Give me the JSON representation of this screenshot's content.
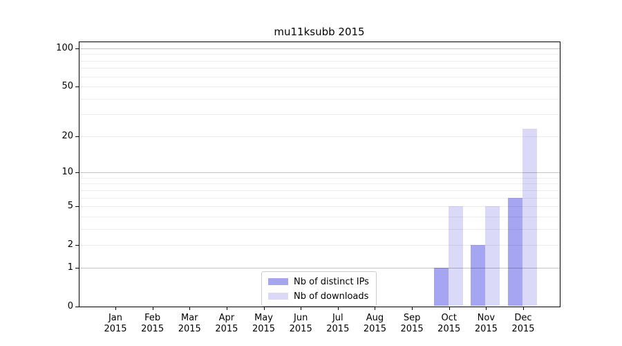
{
  "chart_data": {
    "type": "bar",
    "title": "mu11ksubb 2015",
    "yscale": "log1p",
    "ylim": [
      0,
      113
    ],
    "grid": true,
    "legend_position": "lower-center-inside",
    "yticks": [
      0,
      1,
      2,
      5,
      10,
      20,
      50,
      100
    ],
    "x_tick_labels": [
      {
        "month": "Jan",
        "year": "2015"
      },
      {
        "month": "Feb",
        "year": "2015"
      },
      {
        "month": "Mar",
        "year": "2015"
      },
      {
        "month": "Apr",
        "year": "2015"
      },
      {
        "month": "May",
        "year": "2015"
      },
      {
        "month": "Jun",
        "year": "2015"
      },
      {
        "month": "Jul",
        "year": "2015"
      },
      {
        "month": "Aug",
        "year": "2015"
      },
      {
        "month": "Sep",
        "year": "2015"
      },
      {
        "month": "Oct",
        "year": "2015"
      },
      {
        "month": "Nov",
        "year": "2015"
      },
      {
        "month": "Dec",
        "year": "2015"
      }
    ],
    "series": [
      {
        "name": "Nb of distinct IPs",
        "color": "#a5a5f1",
        "values": [
          0,
          0,
          0,
          0,
          0,
          0,
          0,
          0,
          0,
          1,
          2,
          6
        ]
      },
      {
        "name": "Nb of downloads",
        "color": "#dadaf8",
        "values": [
          0,
          0,
          0,
          0,
          0,
          0,
          0,
          0,
          0,
          5,
          5,
          23
        ]
      }
    ]
  },
  "colors": {
    "grid_major": "#c4c4c4",
    "grid_minor": "#eeeeee",
    "spine": "#000000",
    "background": "#ffffff"
  }
}
